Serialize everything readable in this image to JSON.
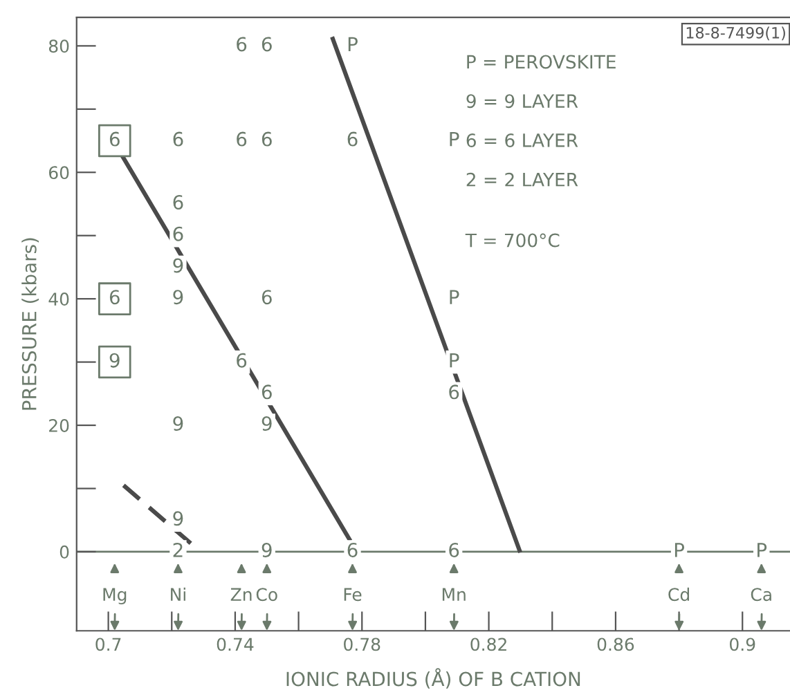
{
  "chart_data": {
    "type": "scatter",
    "xlabel": "IONIC RADIUS (Å) OF B CATION",
    "ylabel": "PRESSURE (kbars)",
    "xlim": [
      0.69,
      0.915
    ],
    "ylim": [
      -12.5,
      84.5
    ],
    "xticks": [
      0.7,
      {
        "value": 0.72,
        "label": null
      },
      0.74,
      {
        "value": 0.76,
        "label": null
      },
      0.78,
      {
        "value": 0.8,
        "label": null
      },
      0.82,
      {
        "value": 0.84,
        "label": null
      },
      0.86,
      {
        "value": 0.88,
        "label": null
      },
      0.9
    ],
    "yticks": [
      0,
      {
        "value": 10,
        "label": null
      },
      20,
      {
        "value": 30,
        "label": null
      },
      40,
      {
        "value": 50,
        "label": null
      },
      60,
      {
        "value": 70,
        "label": null
      },
      80
    ],
    "grid": false,
    "series": [
      {
        "type": "line",
        "line_style": "solid",
        "color": "#4a4a4a",
        "x": [
          0.7044,
          0.776
        ],
        "values": [
          62.6,
          2
        ]
      },
      {
        "type": "line",
        "line_style": "solid",
        "color": "#4a4a4a",
        "x": [
          0.7708,
          0.8297
        ],
        "values": [
          81.1,
          0.2
        ]
      },
      {
        "type": "line",
        "line_style": "dashed",
        "color": "#4a4a4a",
        "x": [
          0.7048,
          0.7286
        ],
        "values": [
          10.5,
          0.2
        ]
      },
      {
        "marker": "square",
        "color": "#6b7a6b",
        "x": [
          0.702,
          0.702,
          0.702
        ],
        "values": [
          65,
          40,
          30
        ]
      }
    ],
    "ref_lines": [
      {
        "axis": "y",
        "value": 0,
        "color": "#6b7a6b"
      }
    ],
    "annotations": [
      "18-8-7499(1)",
      "P = PEROVSKITE",
      "9 = 9 LAYER",
      "6 = 6 LAYER",
      "2 = 2 LAYER",
      "T = 700°C",
      {
        "text": "6",
        "x": 0.702,
        "y": 65
      },
      {
        "text": "6",
        "x": 0.702,
        "y": 40
      },
      {
        "text": "9",
        "x": 0.702,
        "y": 30
      },
      {
        "text": "6",
        "x": 0.722,
        "y": 65
      },
      {
        "text": "6",
        "x": 0.722,
        "y": 55
      },
      {
        "text": "6",
        "x": 0.722,
        "y": 50
      },
      {
        "text": "9",
        "x": 0.722,
        "y": 45
      },
      {
        "text": "9",
        "x": 0.722,
        "y": 40
      },
      {
        "text": "9",
        "x": 0.722,
        "y": 20
      },
      {
        "text": "9",
        "x": 0.722,
        "y": 5
      },
      {
        "text": "2",
        "x": 0.722,
        "y": 0
      },
      {
        "text": "6",
        "x": 0.742,
        "y": 80
      },
      {
        "text": "6",
        "x": 0.742,
        "y": 65
      },
      {
        "text": "6",
        "x": 0.742,
        "y": 30
      },
      {
        "text": "6",
        "x": 0.75,
        "y": 80
      },
      {
        "text": "6",
        "x": 0.75,
        "y": 65
      },
      {
        "text": "6",
        "x": 0.75,
        "y": 40
      },
      {
        "text": "6",
        "x": 0.75,
        "y": 25
      },
      {
        "text": "9",
        "x": 0.75,
        "y": 20
      },
      {
        "text": "9",
        "x": 0.75,
        "y": 0
      },
      {
        "text": "P",
        "x": 0.777,
        "y": 80
      },
      {
        "text": "6",
        "x": 0.777,
        "y": 65
      },
      {
        "text": "6",
        "x": 0.777,
        "y": 0
      },
      {
        "text": "P",
        "x": 0.809,
        "y": 65
      },
      {
        "text": "P",
        "x": 0.809,
        "y": 40
      },
      {
        "text": "P",
        "x": 0.809,
        "y": 30
      },
      {
        "text": "6",
        "x": 0.809,
        "y": 25
      },
      {
        "text": "6",
        "x": 0.809,
        "y": 0
      },
      {
        "text": "P",
        "x": 0.88,
        "y": 0
      },
      {
        "text": "P",
        "x": 0.906,
        "y": 0
      },
      {
        "text": "Mg",
        "x": 0.702,
        "y": 0
      },
      {
        "text": "Ni",
        "x": 0.722,
        "y": 0
      },
      {
        "text": "Zn",
        "x": 0.742,
        "y": 0
      },
      {
        "text": "Co",
        "x": 0.75,
        "y": 0
      },
      {
        "text": "Fe",
        "x": 0.777,
        "y": 0
      },
      {
        "text": "Mn",
        "x": 0.809,
        "y": 0
      },
      {
        "text": "Cd",
        "x": 0.88,
        "y": 0
      },
      {
        "text": "Ca",
        "x": 0.906,
        "y": 0
      }
    ]
  }
}
